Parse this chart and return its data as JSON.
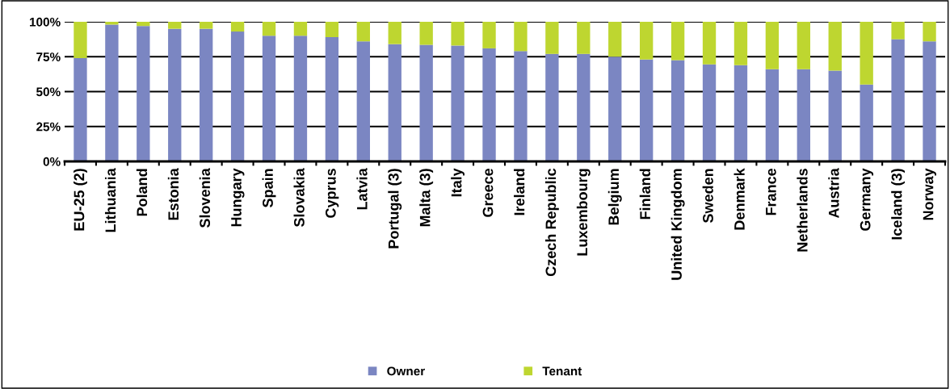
{
  "chart_data": {
    "type": "bar",
    "stacked": true,
    "categories": [
      "EU-25 (2)",
      "Lithuania",
      "Poland",
      "Estonia",
      "Slovenia",
      "Hungary",
      "Spain",
      "Slovakia",
      "Cyprus",
      "Latvia",
      "Portugal (3)",
      "Malta (3)",
      "Italy",
      "Greece",
      "Ireland",
      "Czech Republic",
      "Luxembourg",
      "Belgium",
      "Finland",
      "United Kingdom",
      "Sweden",
      "Denmark",
      "France",
      "Netherlands",
      "Austria",
      "Germany",
      "Iceland (3)",
      "Norway"
    ],
    "series": [
      {
        "name": "Owner",
        "color": "#7b86c2",
        "values": [
          74,
          98,
          97,
          95,
          95,
          93,
          90,
          90,
          89,
          86,
          84,
          83.5,
          83,
          81,
          79,
          77,
          77,
          75,
          73,
          72.5,
          69.5,
          69,
          66,
          66,
          65,
          55,
          87.5,
          86
        ]
      },
      {
        "name": "Tenant",
        "color": "#bed630",
        "values": [
          26,
          2,
          3,
          5,
          5,
          7,
          10,
          10,
          11,
          14,
          16,
          16.5,
          17,
          19,
          21,
          23,
          23,
          25,
          27,
          27.5,
          30.5,
          31,
          34,
          34,
          35,
          45,
          12.5,
          14
        ]
      }
    ],
    "ylim": [
      0,
      100
    ],
    "yticks": [
      {
        "value": 0,
        "label": "0%"
      },
      {
        "value": 25,
        "label": "25%"
      },
      {
        "value": 50,
        "label": "50%"
      },
      {
        "value": 75,
        "label": "75%"
      },
      {
        "value": 100,
        "label": "100%"
      }
    ],
    "grid": "y",
    "legend": "bottom"
  }
}
